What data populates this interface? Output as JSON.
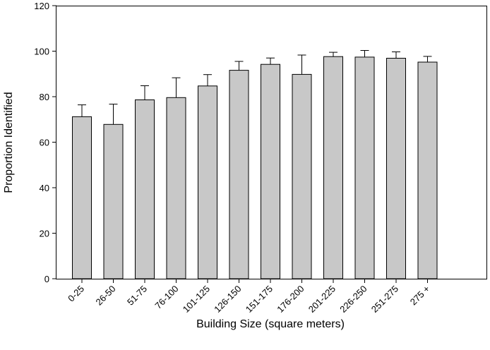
{
  "chart_data": {
    "type": "bar",
    "title": "",
    "xlabel": "Building Size (square meters)",
    "ylabel": "Proportion Identified",
    "categories": [
      "0-25",
      "26-50",
      "51-75",
      "76-100",
      "101-125",
      "126-150",
      "151-175",
      "176-200",
      "201-225",
      "226-250",
      "251-275",
      "275 +"
    ],
    "values": [
      71.2,
      67.8,
      78.6,
      79.6,
      84.7,
      91.6,
      94.2,
      89.8,
      97.6,
      97.4,
      96.9,
      95.2
    ],
    "error_upper": [
      76.4,
      76.7,
      84.8,
      88.3,
      89.7,
      95.5,
      97.0,
      98.3,
      99.5,
      100.3,
      99.7,
      97.7
    ],
    "ylim": [
      0,
      120
    ],
    "yticks": [
      0,
      20,
      40,
      60,
      80,
      100,
      120
    ],
    "grid": false,
    "bar_color": "#c8c8c8"
  }
}
